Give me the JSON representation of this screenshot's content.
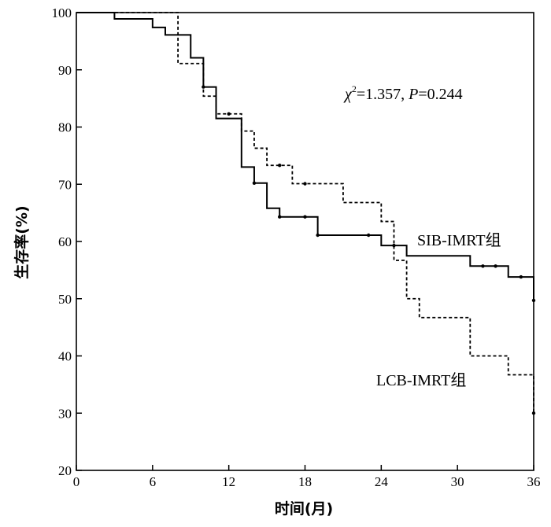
{
  "chart_data": {
    "type": "line",
    "subtype": "kaplan-meier step",
    "xlabel": "时间(月)",
    "ylabel": "生存率(%)",
    "xlim": [
      0,
      36
    ],
    "ylim": [
      20,
      100
    ],
    "xticks": [
      0,
      6,
      12,
      18,
      24,
      30,
      36
    ],
    "yticks": [
      20,
      30,
      40,
      50,
      60,
      70,
      80,
      90,
      100
    ],
    "grid": false,
    "annotation": {
      "chi": "χ",
      "sup": "2",
      "rest": "=1.357, ",
      "p_label": "P",
      "p_value": "=0.244"
    },
    "series": [
      {
        "name": "SIB-IMRT组",
        "line_style": "solid",
        "steps": [
          [
            0,
            100
          ],
          [
            3,
            98.9
          ],
          [
            6,
            97.4
          ],
          [
            7,
            96.1
          ],
          [
            9,
            92.1
          ],
          [
            10,
            87
          ],
          [
            11,
            81.5
          ],
          [
            13,
            73
          ],
          [
            14,
            70.2
          ],
          [
            15,
            65.8
          ],
          [
            16,
            64.3
          ],
          [
            19,
            61.1
          ],
          [
            23,
            61.1
          ],
          [
            24,
            59.3
          ],
          [
            26,
            57.5
          ],
          [
            31,
            55.7
          ],
          [
            34,
            53.8
          ],
          [
            36,
            49.7
          ]
        ],
        "end_x": 36,
        "censored": [
          [
            10,
            87
          ],
          [
            14,
            70.2
          ],
          [
            16,
            64.3
          ],
          [
            18,
            64.3
          ],
          [
            19,
            61.1
          ],
          [
            23,
            61.1
          ],
          [
            25,
            59.3
          ],
          [
            32,
            55.7
          ],
          [
            33,
            55.7
          ],
          [
            35,
            53.8
          ],
          [
            36,
            49.7
          ]
        ]
      },
      {
        "name": "LCB-IMRT组",
        "line_style": "dashed",
        "steps": [
          [
            0,
            100
          ],
          [
            8,
            91.1
          ],
          [
            10,
            85.4
          ],
          [
            11,
            82.3
          ],
          [
            13,
            79.3
          ],
          [
            14,
            76.3
          ],
          [
            15,
            73.3
          ],
          [
            17,
            70.1
          ],
          [
            21,
            66.8
          ],
          [
            24,
            63.5
          ],
          [
            25,
            56.7
          ],
          [
            26,
            50
          ],
          [
            27,
            46.7
          ],
          [
            31,
            40
          ],
          [
            34,
            36.7
          ],
          [
            36,
            30
          ]
        ],
        "end_x": 36,
        "censored": [
          [
            12,
            82.3
          ],
          [
            16,
            73.3
          ],
          [
            18,
            70.1
          ],
          [
            36,
            30
          ]
        ]
      }
    ]
  }
}
